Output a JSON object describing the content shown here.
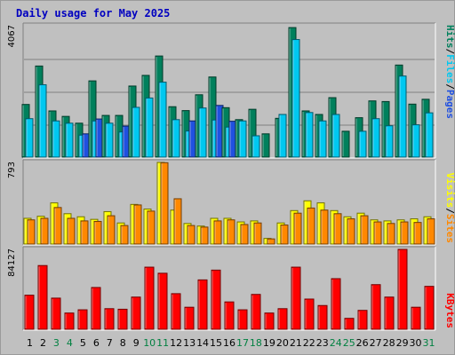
{
  "title": "Daily usage for May 2025",
  "colors": {
    "hits": "#00805c",
    "files": "#00c8f0",
    "pages": "#2050e0",
    "visits": "#ffff00",
    "sites": "#ff8800",
    "kbytes": "#ff0000",
    "title": "#0000c0",
    "weekend_label": "#008040",
    "weekday_label": "#000000"
  },
  "chart_data": [
    {
      "type": "bar",
      "name": "hits-files-pages",
      "max_label": "4067",
      "ylim": [
        0,
        4067
      ],
      "legend": [
        {
          "label": "Pages",
          "color_key": "pages"
        },
        {
          "label": "Files",
          "color_key": "files"
        },
        {
          "label": "Hits",
          "color_key": "hits"
        }
      ],
      "categories": [
        "1",
        "2",
        "3",
        "4",
        "5",
        "6",
        "7",
        "8",
        "9",
        "10",
        "11",
        "12",
        "13",
        "14",
        "15",
        "16",
        "17",
        "18",
        "19",
        "20",
        "21",
        "22",
        "23",
        "24",
        "25",
        "26",
        "27",
        "28",
        "29",
        "30",
        "31"
      ],
      "series": [
        {
          "name": "Hits",
          "color_key": "hits",
          "values": [
            1630,
            2820,
            1430,
            1260,
            1050,
            2360,
            1290,
            1290,
            2200,
            2530,
            3130,
            1560,
            1440,
            1930,
            2480,
            1530,
            1160,
            1480,
            720,
            1200,
            4010,
            1430,
            1320,
            1840,
            800,
            1220,
            1740,
            1720,
            2850,
            1640,
            1790
          ]
        },
        {
          "name": "Files",
          "color_key": "files",
          "values": [
            1190,
            2240,
            1120,
            1050,
            680,
            1120,
            1050,
            780,
            1540,
            1830,
            2320,
            1160,
            810,
            1520,
            1150,
            930,
            1120,
            660,
            0,
            1320,
            3640,
            1380,
            1120,
            1320,
            0,
            800,
            1190,
            970,
            2510,
            1000,
            1370
          ]
        },
        {
          "name": "Pages",
          "color_key": "pages",
          "values": [
            0,
            0,
            0,
            0,
            720,
            1180,
            0,
            960,
            0,
            0,
            0,
            0,
            1120,
            0,
            1600,
            1110,
            0,
            0,
            0,
            0,
            0,
            0,
            0,
            0,
            0,
            0,
            0,
            0,
            0,
            0,
            0
          ]
        }
      ]
    },
    {
      "type": "bar",
      "name": "visits-sites",
      "max_label": "793",
      "ylim": [
        0,
        793
      ],
      "legend": [
        {
          "label": "Sites",
          "color_key": "sites"
        },
        {
          "label": "Visits",
          "color_key": "visits"
        }
      ],
      "categories": [
        "1",
        "2",
        "3",
        "4",
        "5",
        "6",
        "7",
        "8",
        "9",
        "10",
        "11",
        "12",
        "13",
        "14",
        "15",
        "16",
        "17",
        "18",
        "19",
        "20",
        "21",
        "22",
        "23",
        "24",
        "25",
        "26",
        "27",
        "28",
        "29",
        "30",
        "31"
      ],
      "series": [
        {
          "name": "Visits",
          "color_key": "visits",
          "values": [
            250,
            270,
            400,
            295,
            265,
            240,
            315,
            205,
            385,
            340,
            793,
            330,
            200,
            175,
            250,
            250,
            215,
            225,
            55,
            205,
            325,
            420,
            400,
            325,
            265,
            300,
            235,
            225,
            235,
            245,
            265
          ]
        },
        {
          "name": "Sites",
          "color_key": "sites",
          "values": [
            235,
            250,
            355,
            250,
            225,
            220,
            275,
            180,
            380,
            320,
            790,
            440,
            180,
            165,
            225,
            235,
            190,
            205,
            50,
            185,
            300,
            350,
            330,
            295,
            245,
            275,
            215,
            200,
            215,
            210,
            245
          ]
        }
      ]
    },
    {
      "type": "bar",
      "name": "kbytes",
      "max_label": "84127",
      "ylim": [
        0,
        84127
      ],
      "legend": [
        {
          "label": "KBytes",
          "color_key": "kbytes"
        }
      ],
      "categories": [
        "1",
        "2",
        "3",
        "4",
        "5",
        "6",
        "7",
        "8",
        "9",
        "10",
        "11",
        "12",
        "13",
        "14",
        "15",
        "16",
        "17",
        "18",
        "19",
        "20",
        "21",
        "22",
        "23",
        "24",
        "25",
        "26",
        "27",
        "28",
        "29",
        "30",
        "31"
      ],
      "series": [
        {
          "name": "KBytes",
          "color_key": "kbytes",
          "values": [
            35900,
            67100,
            32800,
            17100,
            20500,
            44000,
            21700,
            21100,
            33900,
            65400,
            59000,
            37500,
            23200,
            52000,
            62300,
            28800,
            20500,
            36700,
            17100,
            21700,
            65400,
            31800,
            25000,
            53300,
            11500,
            19900,
            47000,
            33900,
            84127,
            23200,
            45200
          ]
        }
      ]
    }
  ],
  "weekend_days": [
    "3",
    "4",
    "10",
    "11",
    "17",
    "18",
    "24",
    "25",
    "31"
  ]
}
